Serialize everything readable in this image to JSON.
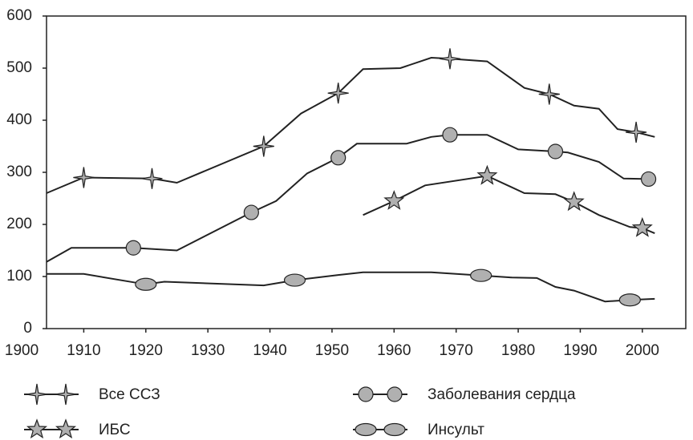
{
  "chart_data": {
    "type": "line",
    "xlim": [
      1904,
      2007
    ],
    "xticks": [
      1900,
      1910,
      1920,
      1930,
      1940,
      1950,
      1960,
      1970,
      1980,
      1990,
      2000
    ],
    "ylim": [
      0,
      600
    ],
    "yticks": [
      0,
      100,
      200,
      300,
      400,
      500,
      600
    ],
    "series": [
      {
        "name": "Все ССЗ",
        "color": "#222222",
        "marker": "star4",
        "marker_color": "#b0b0b0",
        "x": [
          1904,
          1910,
          1921,
          1925,
          1939,
          1945,
          1951,
          1955,
          1961,
          1966,
          1969,
          1975,
          1981,
          1985,
          1989,
          1993,
          1996,
          1999,
          2002
        ],
        "values": [
          260,
          290,
          288,
          280,
          350,
          413,
          452,
          498,
          500,
          520,
          518,
          513,
          462,
          450,
          428,
          422,
          383,
          377,
          368
        ],
        "markevery": [
          1,
          2,
          4,
          6,
          10,
          13,
          17
        ]
      },
      {
        "name": "Заболевания сердца",
        "color": "#222222",
        "marker": "circle",
        "marker_color": "#b0b0b0",
        "x": [
          1904,
          1908,
          1918,
          1925,
          1937,
          1941,
          1946,
          1951,
          1954,
          1962,
          1966,
          1969,
          1975,
          1980,
          1986,
          1988,
          1993,
          1997,
          2001,
          2002
        ],
        "values": [
          128,
          155,
          155,
          150,
          223,
          245,
          298,
          328,
          355,
          355,
          368,
          372,
          372,
          344,
          340,
          338,
          320,
          288,
          287,
          283
        ],
        "markevery": [
          2,
          4,
          7,
          11,
          14,
          18
        ]
      },
      {
        "name": "ИБС",
        "color": "#222222",
        "marker": "star5",
        "marker_color": "#b0b0b0",
        "x": [
          1955,
          1960,
          1965,
          1975,
          1981,
          1986,
          1989,
          1993,
          1998,
          2000,
          2002
        ],
        "values": [
          218,
          245,
          275,
          293,
          260,
          258,
          243,
          218,
          195,
          193,
          183
        ],
        "markevery": [
          1,
          3,
          6,
          9
        ]
      },
      {
        "name": "Инсульт",
        "color": "#222222",
        "marker": "ellipse",
        "marker_color": "#b0b0b0",
        "x": [
          1904,
          1910,
          1920,
          1923,
          1939,
          1944,
          1951,
          1955,
          1966,
          1974,
          1979,
          1983,
          1986,
          1989,
          1994,
          1998,
          2002
        ],
        "values": [
          105,
          105,
          85,
          90,
          83,
          93,
          103,
          108,
          108,
          102,
          98,
          97,
          80,
          73,
          52,
          55,
          57
        ],
        "markevery": [
          2,
          5,
          9,
          15
        ]
      }
    ]
  }
}
